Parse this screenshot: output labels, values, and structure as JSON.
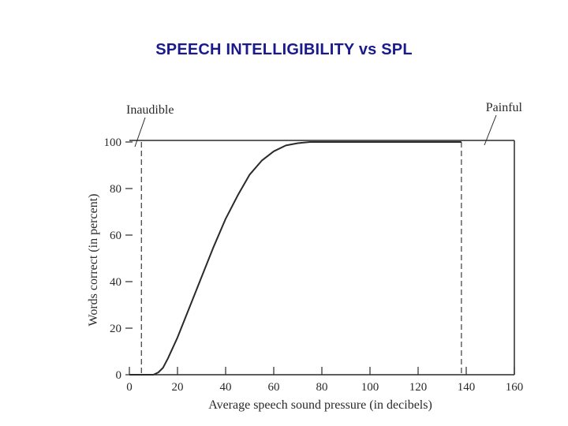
{
  "slide": {
    "title": "SPEECH INTELLIGIBILITY vs SPL"
  },
  "chart_data": {
    "type": "line",
    "title": "SPEECH INTELLIGIBILITY vs SPL",
    "xlabel": "Average speech sound pressure (in decibels)",
    "ylabel": "Words correct (in percent)",
    "xlim": [
      0,
      160
    ],
    "ylim": [
      0,
      100
    ],
    "xticks": [
      0,
      20,
      40,
      60,
      80,
      100,
      120,
      140,
      160
    ],
    "yticks": [
      0,
      20,
      40,
      60,
      80,
      100
    ],
    "series": [
      {
        "x": [
          0,
          5,
          8,
          10,
          12,
          14,
          16,
          20,
          25,
          30,
          35,
          40,
          45,
          50,
          55,
          60,
          65,
          70,
          75,
          80,
          90,
          100,
          110,
          120,
          130,
          138
        ],
        "y": [
          0,
          0,
          0,
          0,
          1,
          3,
          7,
          16,
          29,
          42,
          55,
          67,
          77,
          86,
          92,
          96,
          98.5,
          99.5,
          100,
          100,
          100,
          100,
          100,
          100,
          100,
          100
        ]
      }
    ],
    "annotations": [
      {
        "text": "Inaudible",
        "x": 5
      },
      {
        "text": "Painful",
        "x": 138
      }
    ],
    "grid": false,
    "colors": {
      "line": "#2a2a2a",
      "title": "#1a1a8c"
    }
  }
}
